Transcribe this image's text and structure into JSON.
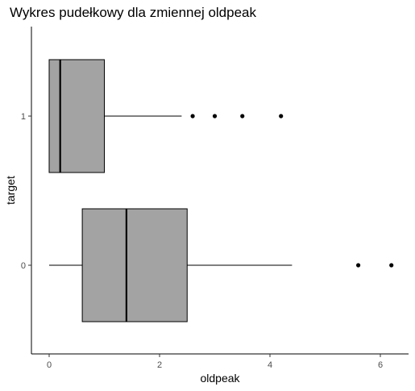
{
  "chart_data": {
    "type": "boxplot",
    "orientation": "horizontal",
    "title": "Wykres pudełkowy dla zmiennej oldpeak",
    "xlabel": "oldpeak",
    "ylabel": "target",
    "xlim": [
      -0.3,
      6.5
    ],
    "x_ticks": [
      0,
      2,
      4,
      6
    ],
    "categories": [
      "0",
      "1"
    ],
    "box_fill": "#a3a3a3",
    "boxes": [
      {
        "category": "0",
        "whisker_low": 0.0,
        "q1": 0.6,
        "median": 1.4,
        "q3": 2.5,
        "whisker_high": 4.4,
        "outliers": [
          5.6,
          6.2
        ]
      },
      {
        "category": "1",
        "whisker_low": 0.0,
        "q1": 0.0,
        "median": 0.2,
        "q3": 1.0,
        "whisker_high": 2.4,
        "outliers": [
          2.6,
          3.0,
          3.5,
          4.2
        ]
      }
    ],
    "grid": false,
    "legend": "none"
  }
}
